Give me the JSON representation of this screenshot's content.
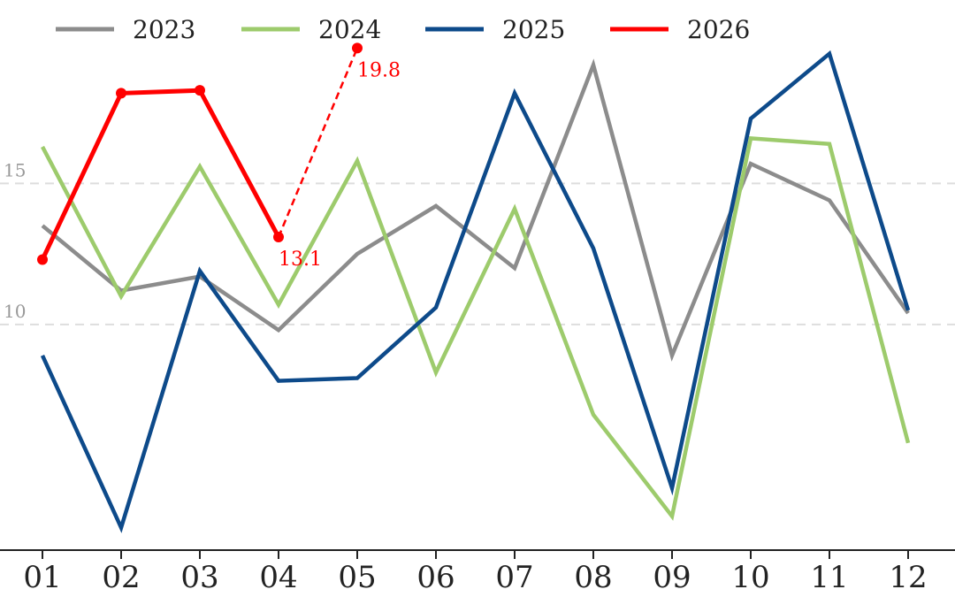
{
  "chart_data": {
    "type": "line",
    "categories": [
      "01",
      "02",
      "03",
      "04",
      "05",
      "06",
      "07",
      "08",
      "09",
      "10",
      "11",
      "12"
    ],
    "ylim": [
      2,
      20.5
    ],
    "y_ticks": [
      10,
      15
    ],
    "grid": "horizontal-dashed",
    "legend_position": "top",
    "series": [
      {
        "name": "2023",
        "color": "#8c8c8c",
        "values": [
          13.5,
          11.2,
          11.7,
          9.8,
          12.5,
          14.2,
          12.0,
          19.2,
          8.9,
          15.7,
          14.4,
          10.4
        ]
      },
      {
        "name": "2024",
        "color": "#9dcb6c",
        "values": [
          16.3,
          11.0,
          15.6,
          10.7,
          15.8,
          8.3,
          14.1,
          6.8,
          3.2,
          16.6,
          16.4,
          5.8
        ]
      },
      {
        "name": "2025",
        "color": "#0d4a8a",
        "values": [
          8.9,
          2.8,
          11.9,
          8.0,
          8.1,
          10.6,
          18.2,
          12.7,
          4.2,
          17.3,
          19.6,
          10.5
        ]
      },
      {
        "name": "2026",
        "color": "#ff0000",
        "values": [
          12.3,
          18.2,
          18.3,
          13.1,
          null,
          null,
          null,
          null,
          null,
          null,
          null,
          null
        ],
        "forecast": {
          "from_index": 3,
          "to_index": 4,
          "values": [
            13.1,
            19.8
          ]
        },
        "labels": [
          {
            "index": 3,
            "text": "13.1"
          },
          {
            "index": 4,
            "text": "19.8"
          }
        ]
      }
    ]
  }
}
